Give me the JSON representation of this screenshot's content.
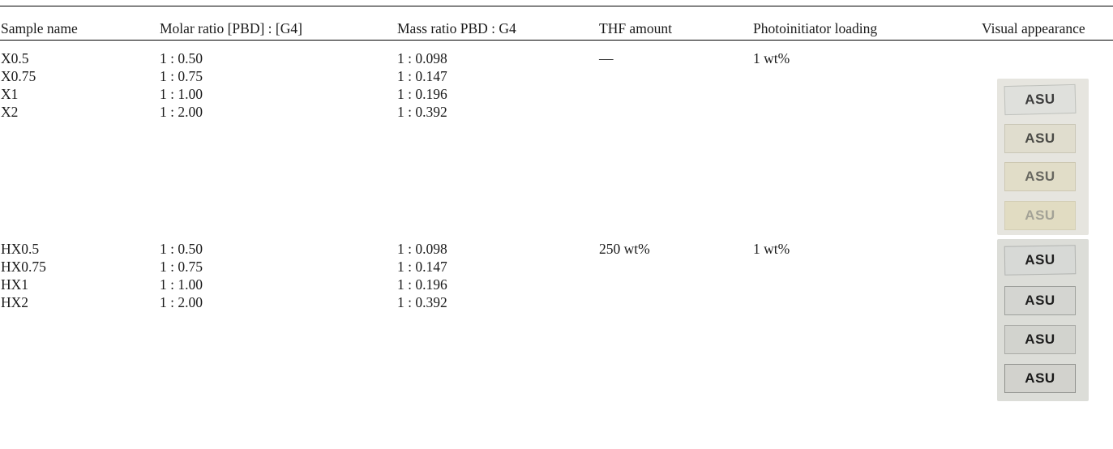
{
  "table": {
    "headers": [
      "Sample name",
      "Molar ratio [PBD] : [G4]",
      "Mass ratio PBD : G4",
      "THF amount",
      "Photoinitiator loading",
      "Visual appearance"
    ],
    "groups": [
      {
        "samples": [
          "X0.5",
          "X0.75",
          "X1",
          "X2"
        ],
        "molar": [
          "1 : 0.50",
          "1 : 0.75",
          "1 : 1.00",
          "1 : 2.00"
        ],
        "mass": [
          "1 : 0.098",
          "1 : 0.147",
          "1 : 0.196",
          "1 : 0.392"
        ],
        "thf": "—",
        "photoinitiator": "1 wt%",
        "photo_labels": [
          "ASU",
          "ASU",
          "ASU",
          "ASU"
        ]
      },
      {
        "samples": [
          "HX0.5",
          "HX0.75",
          "HX1",
          "HX2"
        ],
        "molar": [
          "1 : 0.50",
          "1 : 0.75",
          "1 : 1.00",
          "1 : 2.00"
        ],
        "mass": [
          "1 : 0.098",
          "1 : 0.147",
          "1 : 0.196",
          "1 : 0.392"
        ],
        "thf": "250 wt%",
        "photoinitiator": "1 wt%",
        "photo_labels": [
          "ASU",
          "ASU",
          "ASU",
          "ASU"
        ]
      }
    ]
  }
}
